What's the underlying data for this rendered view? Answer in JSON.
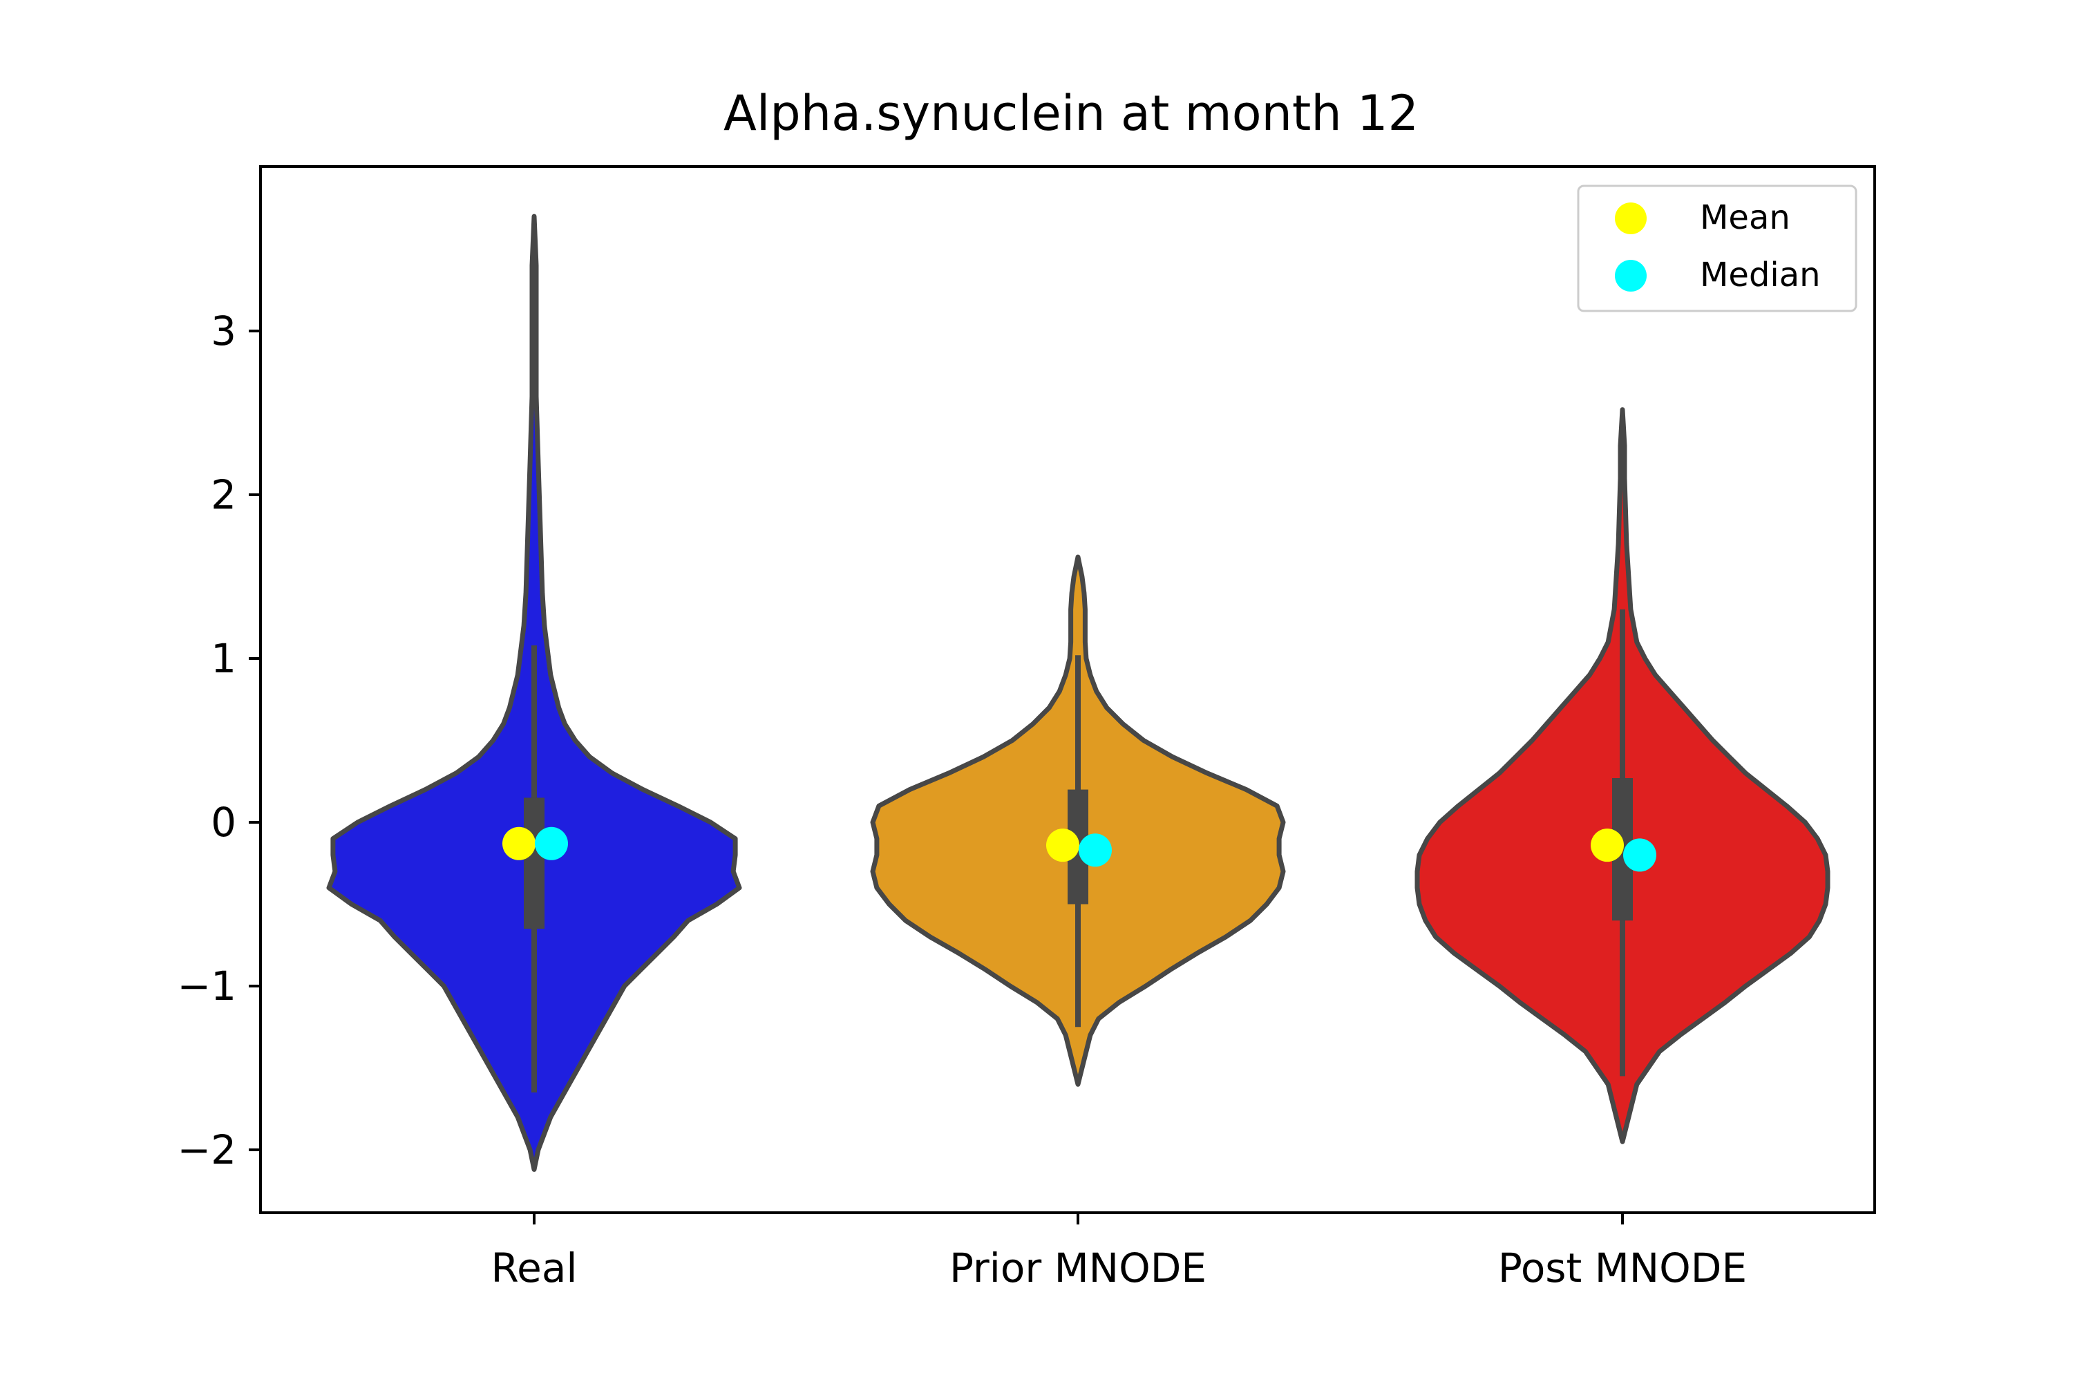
{
  "chart_data": {
    "type": "violin",
    "title": "Alpha.synuclein at month 12",
    "xlabel": "",
    "ylabel": "",
    "categories": [
      "Real",
      "Prior MNODE",
      "Post MNODE"
    ],
    "ylim": [
      -2.4,
      3.9
    ],
    "yticks": [
      -2,
      -1,
      0,
      1,
      2,
      3
    ],
    "ytick_labels": [
      "−2",
      "−1",
      "0",
      "1",
      "2",
      "3"
    ],
    "grid": false,
    "legend": {
      "position": "top-right",
      "entries": [
        {
          "label": "Mean",
          "color": "#ffff00"
        },
        {
          "label": "Median",
          "color": "#00ffff"
        }
      ]
    },
    "series": [
      {
        "category": "Real",
        "color": "#1f1fdf",
        "min": -2.12,
        "max": 3.7,
        "q1": -0.65,
        "q3": 0.15,
        "whisker_low": -1.65,
        "whisker_high": 1.08,
        "mean": -0.13,
        "median": -0.13,
        "density": [
          [
            -2.12,
            0.0
          ],
          [
            -2.0,
            0.02
          ],
          [
            -1.8,
            0.08
          ],
          [
            -1.6,
            0.17
          ],
          [
            -1.4,
            0.26
          ],
          [
            -1.2,
            0.35
          ],
          [
            -1.0,
            0.44
          ],
          [
            -0.9,
            0.52
          ],
          [
            -0.8,
            0.6
          ],
          [
            -0.7,
            0.68
          ],
          [
            -0.6,
            0.75
          ],
          [
            -0.5,
            0.89
          ],
          [
            -0.4,
            1.0
          ],
          [
            -0.3,
            0.97
          ],
          [
            -0.2,
            0.98
          ],
          [
            -0.1,
            0.98
          ],
          [
            0.0,
            0.86
          ],
          [
            0.1,
            0.7
          ],
          [
            0.2,
            0.53
          ],
          [
            0.3,
            0.38
          ],
          [
            0.4,
            0.27
          ],
          [
            0.5,
            0.2
          ],
          [
            0.6,
            0.15
          ],
          [
            0.7,
            0.12
          ],
          [
            0.8,
            0.1
          ],
          [
            0.9,
            0.08
          ],
          [
            1.0,
            0.07
          ],
          [
            1.2,
            0.05
          ],
          [
            1.4,
            0.04
          ],
          [
            1.8,
            0.03
          ],
          [
            2.2,
            0.02
          ],
          [
            2.6,
            0.01
          ],
          [
            3.0,
            0.01
          ],
          [
            3.4,
            0.01
          ],
          [
            3.7,
            0.0
          ]
        ]
      },
      {
        "category": "Prior MNODE",
        "color": "#e09b22",
        "min": -1.6,
        "max": 1.62,
        "q1": -0.5,
        "q3": 0.2,
        "whisker_low": -1.25,
        "whisker_high": 1.02,
        "mean": -0.14,
        "median": -0.17,
        "density": [
          [
            -1.6,
            0.0
          ],
          [
            -1.45,
            0.03
          ],
          [
            -1.3,
            0.06
          ],
          [
            -1.2,
            0.1
          ],
          [
            -1.1,
            0.2
          ],
          [
            -1.0,
            0.33
          ],
          [
            -0.9,
            0.45
          ],
          [
            -0.8,
            0.58
          ],
          [
            -0.7,
            0.72
          ],
          [
            -0.6,
            0.84
          ],
          [
            -0.5,
            0.92
          ],
          [
            -0.4,
            0.98
          ],
          [
            -0.3,
            1.0
          ],
          [
            -0.2,
            0.98
          ],
          [
            -0.1,
            0.98
          ],
          [
            0.0,
            1.0
          ],
          [
            0.1,
            0.97
          ],
          [
            0.2,
            0.82
          ],
          [
            0.3,
            0.63
          ],
          [
            0.4,
            0.46
          ],
          [
            0.5,
            0.32
          ],
          [
            0.6,
            0.22
          ],
          [
            0.7,
            0.14
          ],
          [
            0.8,
            0.09
          ],
          [
            0.9,
            0.06
          ],
          [
            1.0,
            0.04
          ],
          [
            1.1,
            0.035
          ],
          [
            1.2,
            0.035
          ],
          [
            1.3,
            0.035
          ],
          [
            1.4,
            0.03
          ],
          [
            1.5,
            0.02
          ],
          [
            1.62,
            0.0
          ]
        ]
      },
      {
        "category": "Post MNODE",
        "color": "#df2020",
        "min": -1.95,
        "max": 2.52,
        "q1": -0.6,
        "q3": 0.27,
        "whisker_low": -1.55,
        "whisker_high": 1.3,
        "mean": -0.14,
        "median": -0.2,
        "density": [
          [
            -1.95,
            0.0
          ],
          [
            -1.8,
            0.03
          ],
          [
            -1.6,
            0.07
          ],
          [
            -1.4,
            0.18
          ],
          [
            -1.3,
            0.28
          ],
          [
            -1.2,
            0.39
          ],
          [
            -1.1,
            0.5
          ],
          [
            -1.0,
            0.6
          ],
          [
            -0.9,
            0.71
          ],
          [
            -0.8,
            0.82
          ],
          [
            -0.7,
            0.91
          ],
          [
            -0.6,
            0.96
          ],
          [
            -0.5,
            0.99
          ],
          [
            -0.4,
            1.0
          ],
          [
            -0.3,
            1.0
          ],
          [
            -0.2,
            0.99
          ],
          [
            -0.1,
            0.95
          ],
          [
            0.0,
            0.89
          ],
          [
            0.1,
            0.8
          ],
          [
            0.2,
            0.7
          ],
          [
            0.3,
            0.6
          ],
          [
            0.4,
            0.52
          ],
          [
            0.5,
            0.44
          ],
          [
            0.6,
            0.37
          ],
          [
            0.7,
            0.3
          ],
          [
            0.8,
            0.23
          ],
          [
            0.9,
            0.16
          ],
          [
            1.0,
            0.11
          ],
          [
            1.1,
            0.07
          ],
          [
            1.3,
            0.04
          ],
          [
            1.5,
            0.03
          ],
          [
            1.7,
            0.02
          ],
          [
            1.9,
            0.015
          ],
          [
            2.1,
            0.01
          ],
          [
            2.3,
            0.01
          ],
          [
            2.52,
            0.0
          ]
        ]
      }
    ]
  }
}
